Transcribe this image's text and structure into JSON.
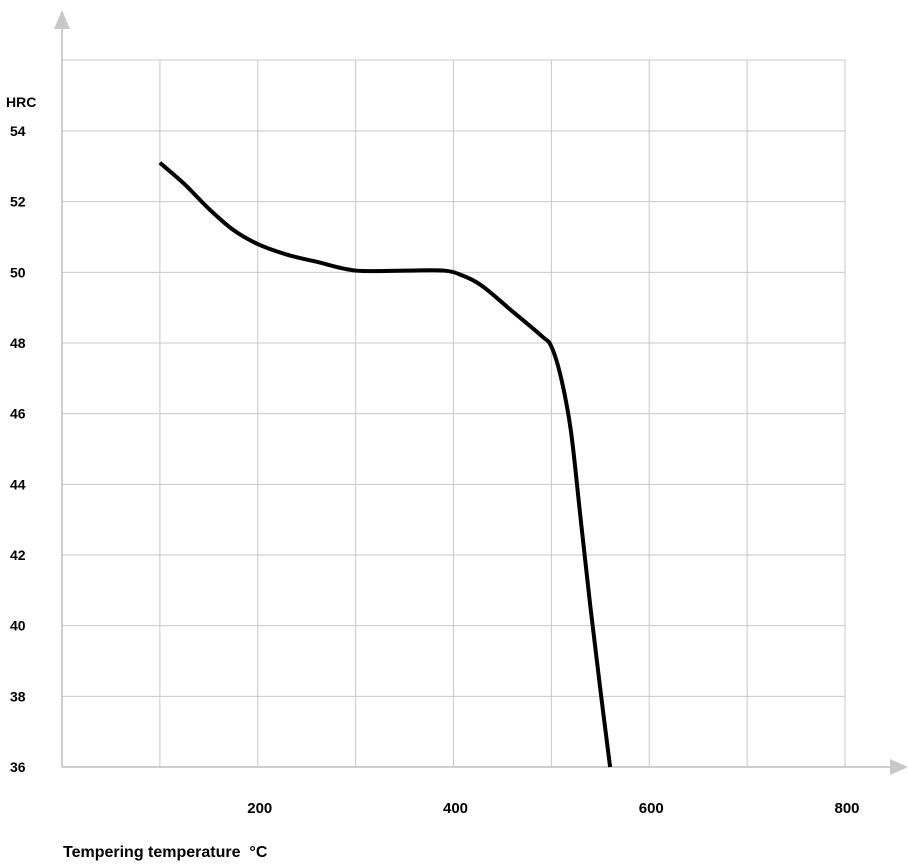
{
  "chart_data": {
    "type": "line",
    "title": "",
    "xlabel": "Tempering temperature  °C",
    "ylabel": "HRC",
    "xlim": [
      0,
      800
    ],
    "ylim": [
      36,
      55
    ],
    "x_ticks": [
      100,
      200,
      300,
      400,
      500,
      600,
      700,
      800
    ],
    "x_tick_labels": [
      "200",
      "400",
      "600",
      "800"
    ],
    "x_tick_label_values": [
      200,
      400,
      600,
      800
    ],
    "y_tick_labels": [
      "36",
      "38",
      "40",
      "42",
      "44",
      "46",
      "48",
      "50",
      "52",
      "54"
    ],
    "y_ticks": [
      36,
      38,
      40,
      42,
      44,
      46,
      48,
      50,
      52,
      54
    ],
    "grid": true,
    "colors": {
      "line": "#000000",
      "grid": "#c8c8c8",
      "axis": "#bfbfbf",
      "arrow": "#c8c8c8"
    },
    "series": [
      {
        "x": [
          100,
          125,
          150,
          175,
          200,
          230,
          260,
          300,
          350,
          390,
          410,
          430,
          460,
          490,
          500,
          510,
          520,
          530,
          540,
          550,
          560
        ],
        "y": [
          53.1,
          52.5,
          51.8,
          51.2,
          50.8,
          50.5,
          50.3,
          50.05,
          50.05,
          50.05,
          49.9,
          49.6,
          48.9,
          48.2,
          47.9,
          47.0,
          45.5,
          43.0,
          40.5,
          38.2,
          36.0
        ]
      }
    ]
  }
}
